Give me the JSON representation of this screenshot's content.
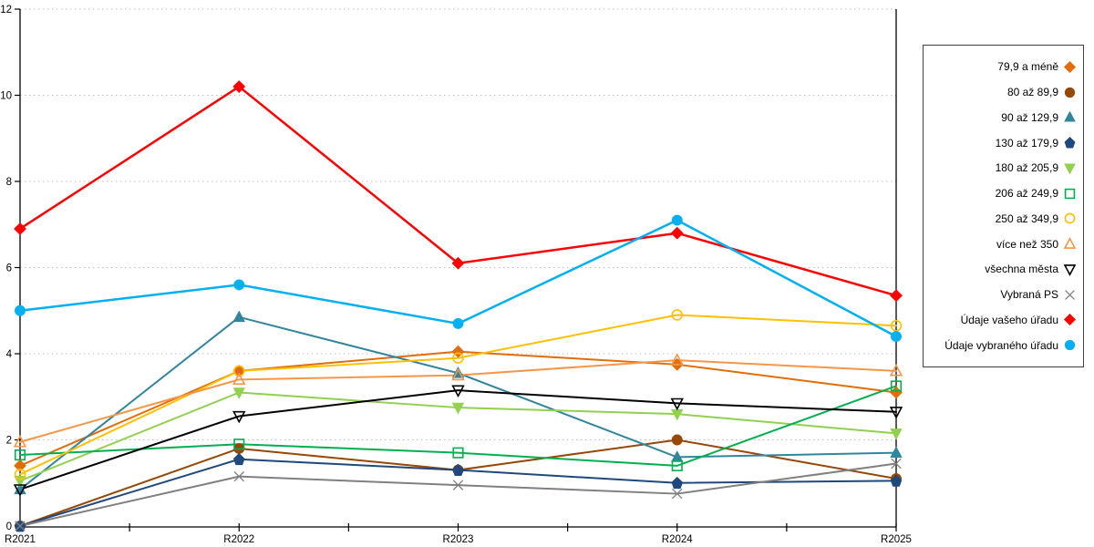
{
  "chart_data": {
    "type": "line",
    "title": "",
    "xlabel": "",
    "ylabel": "",
    "x_categories": [
      "R2021",
      "R2022",
      "R2023",
      "R2024",
      "R2025"
    ],
    "y_ticks": [
      0,
      2,
      4,
      6,
      8,
      10,
      12
    ],
    "ylim": [
      0,
      12
    ],
    "grid": "horizontal-dotted",
    "legend_position": "right",
    "series": [
      {
        "name": "79,9 a méně",
        "color": "#E36C09",
        "marker": "diamond",
        "filled": true,
        "line_width": 2,
        "values": [
          1.4,
          3.6,
          4.05,
          3.75,
          3.1
        ]
      },
      {
        "name": "80 až 89,9",
        "color": "#974806",
        "marker": "circle",
        "filled": true,
        "line_width": 2,
        "values": [
          0.0,
          1.8,
          1.3,
          2.0,
          1.1
        ]
      },
      {
        "name": "90 až 129,9",
        "color": "#31859C",
        "marker": "triangle-up",
        "filled": true,
        "line_width": 2,
        "values": [
          0.85,
          4.85,
          3.55,
          1.6,
          1.7
        ]
      },
      {
        "name": "130 až 179,9",
        "color": "#1F497D",
        "marker": "pentagon",
        "filled": true,
        "line_width": 2,
        "values": [
          0.0,
          1.55,
          1.3,
          1.0,
          1.05
        ]
      },
      {
        "name": "180 až 205,9",
        "color": "#92D050",
        "marker": "triangle-down",
        "filled": true,
        "line_width": 2,
        "values": [
          1.05,
          3.1,
          2.75,
          2.6,
          2.15
        ]
      },
      {
        "name": "206 až 249,9",
        "color": "#00B050",
        "marker": "square",
        "filled": false,
        "line_width": 2,
        "values": [
          1.65,
          1.9,
          1.7,
          1.4,
          3.25
        ]
      },
      {
        "name": "250 až 349,9",
        "color": "#FFC000",
        "marker": "circle",
        "filled": false,
        "line_width": 2,
        "values": [
          1.2,
          3.6,
          3.9,
          4.9,
          4.65
        ]
      },
      {
        "name": "více než 350",
        "color": "#F79646",
        "marker": "triangle-up",
        "filled": false,
        "line_width": 2,
        "values": [
          1.95,
          3.4,
          3.5,
          3.85,
          3.6
        ]
      },
      {
        "name": "všechna města",
        "color": "#000000",
        "marker": "triangle-down",
        "filled": false,
        "line_width": 2,
        "values": [
          0.85,
          2.55,
          3.15,
          2.85,
          2.65
        ]
      },
      {
        "name": "Vybraná PS",
        "color": "#808080",
        "marker": "x",
        "filled": false,
        "line_width": 2,
        "values": [
          0.0,
          1.15,
          0.95,
          0.75,
          1.45
        ]
      },
      {
        "name": "Údaje vašeho úřadu",
        "color": "#FF0000",
        "marker": "diamond",
        "filled": true,
        "line_width": 2.5,
        "values": [
          6.9,
          10.2,
          6.1,
          6.8,
          5.35
        ]
      },
      {
        "name": "Údaje vybraného úřadu",
        "color": "#00B0F0",
        "marker": "circle",
        "filled": true,
        "line_width": 2.5,
        "values": [
          5.0,
          5.6,
          4.7,
          7.1,
          4.4
        ]
      }
    ]
  },
  "colors": {
    "background": "#FFFFFF",
    "axis": "#000000",
    "gridline": "#BFBFBF",
    "tick_label": "#000000",
    "legend_border": "#404040"
  }
}
